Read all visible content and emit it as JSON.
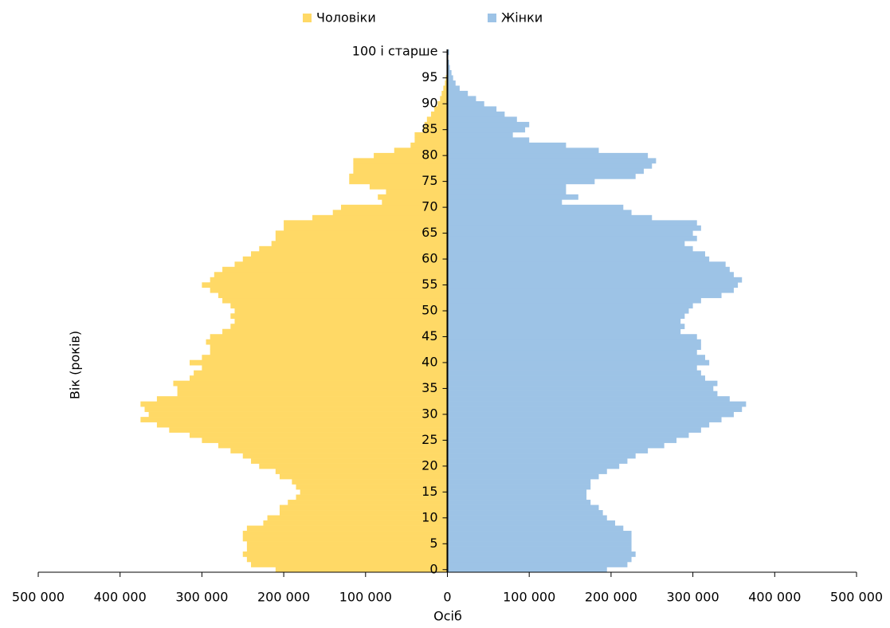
{
  "chart_data": {
    "type": "pyramid",
    "y_label": "Вік (років)",
    "x_label": "Осіб",
    "categories": [
      "0",
      null,
      null,
      null,
      null,
      "5",
      null,
      null,
      null,
      null,
      "10",
      null,
      null,
      null,
      null,
      "15",
      null,
      null,
      null,
      null,
      "20",
      null,
      null,
      null,
      null,
      "25",
      null,
      null,
      null,
      null,
      "30",
      null,
      null,
      null,
      null,
      "35",
      null,
      null,
      null,
      null,
      "40",
      null,
      null,
      null,
      null,
      "45",
      null,
      null,
      null,
      null,
      "50",
      null,
      null,
      null,
      null,
      "55",
      null,
      null,
      null,
      null,
      "60",
      null,
      null,
      null,
      null,
      "65",
      null,
      null,
      null,
      null,
      "70",
      null,
      null,
      null,
      null,
      "75",
      null,
      null,
      null,
      null,
      "80",
      null,
      null,
      null,
      null,
      "85",
      null,
      null,
      null,
      null,
      "90",
      null,
      null,
      null,
      null,
      "95",
      null,
      null,
      null,
      null,
      "100 і старше"
    ],
    "series": [
      {
        "name": "Чоловіки",
        "color": "#ffd966",
        "side": "left",
        "values": [
          210000,
          240000,
          245000,
          250000,
          245000,
          245000,
          250000,
          250000,
          245000,
          225000,
          220000,
          205000,
          205000,
          195000,
          185000,
          180000,
          185000,
          190000,
          205000,
          210000,
          230000,
          240000,
          250000,
          265000,
          280000,
          300000,
          315000,
          340000,
          355000,
          375000,
          365000,
          370000,
          375000,
          355000,
          330000,
          330000,
          335000,
          315000,
          310000,
          300000,
          315000,
          300000,
          290000,
          290000,
          295000,
          290000,
          275000,
          265000,
          260000,
          265000,
          260000,
          265000,
          275000,
          280000,
          290000,
          300000,
          290000,
          285000,
          275000,
          260000,
          250000,
          240000,
          230000,
          215000,
          210000,
          210000,
          200000,
          200000,
          165000,
          140000,
          130000,
          80000,
          85000,
          75000,
          95000,
          120000,
          120000,
          115000,
          115000,
          115000,
          90000,
          65000,
          45000,
          40000,
          40000,
          30000,
          28000,
          25000,
          20000,
          16000,
          12000,
          9000,
          7000,
          5000,
          3000,
          2000,
          1000,
          500,
          300,
          200,
          500
        ]
      },
      {
        "name": "Жінки",
        "color": "#9dc3e6",
        "side": "right",
        "values": [
          195000,
          220000,
          225000,
          230000,
          225000,
          225000,
          225000,
          225000,
          215000,
          205000,
          195000,
          190000,
          185000,
          175000,
          170000,
          170000,
          175000,
          175000,
          185000,
          195000,
          210000,
          220000,
          230000,
          245000,
          265000,
          280000,
          295000,
          310000,
          320000,
          335000,
          350000,
          360000,
          365000,
          345000,
          330000,
          325000,
          330000,
          315000,
          310000,
          305000,
          320000,
          315000,
          305000,
          310000,
          310000,
          305000,
          285000,
          290000,
          285000,
          290000,
          295000,
          300000,
          310000,
          335000,
          350000,
          355000,
          360000,
          350000,
          345000,
          340000,
          320000,
          315000,
          300000,
          290000,
          305000,
          300000,
          310000,
          305000,
          250000,
          225000,
          215000,
          140000,
          160000,
          145000,
          145000,
          180000,
          230000,
          240000,
          250000,
          255000,
          245000,
          185000,
          145000,
          100000,
          80000,
          95000,
          100000,
          85000,
          70000,
          60000,
          45000,
          35000,
          25000,
          15000,
          10000,
          7000,
          5000,
          3000,
          2000,
          1000,
          2000
        ]
      }
    ],
    "xlim": [
      -500000,
      500000
    ],
    "xticks": [
      {
        "value": -500000,
        "label": "500 000"
      },
      {
        "value": -400000,
        "label": "400 000"
      },
      {
        "value": -300000,
        "label": "300 000"
      },
      {
        "value": -200000,
        "label": "200 000"
      },
      {
        "value": -100000,
        "label": "100 000"
      },
      0,
      {
        "value": 100000,
        "label": "100 000"
      },
      {
        "value": 200000,
        "label": "200 000"
      },
      {
        "value": 300000,
        "label": "300 000"
      },
      {
        "value": 400000,
        "label": "400 000"
      },
      {
        "value": 500000,
        "label": "500 000"
      }
    ],
    "legend": "top"
  }
}
